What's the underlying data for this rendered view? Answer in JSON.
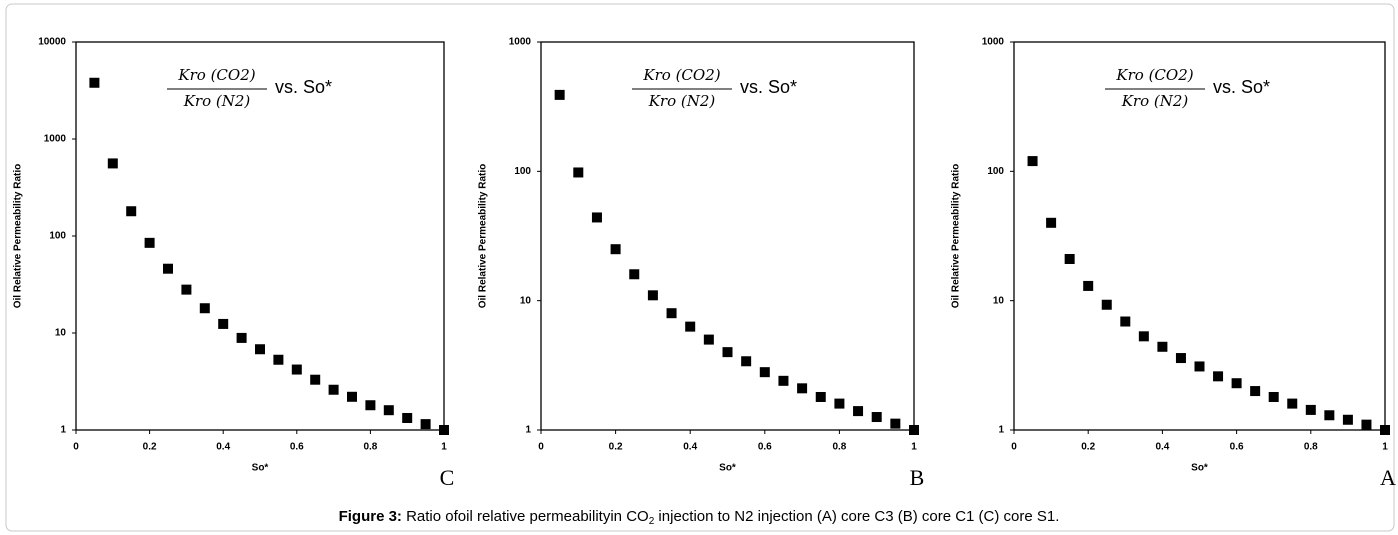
{
  "chart_data": [
    {
      "type": "scatter",
      "panel_label": "C",
      "y_label": "Oil Relative Permeability Ratio",
      "x_label": "So*",
      "annotation": {
        "numerator": "Kro (CO2)",
        "denominator": "Kro (N2)",
        "text": "vs. So*"
      },
      "log_y": true,
      "marker": "square",
      "color": "#000000",
      "xlim": [
        0,
        1
      ],
      "xticks": [
        0,
        0.2,
        0.4,
        0.6,
        0.8,
        1
      ],
      "ylim": [
        1,
        10000
      ],
      "yticks": [
        1,
        10,
        100,
        1000,
        10000
      ],
      "x": [
        0.05,
        0.1,
        0.15,
        0.2,
        0.25,
        0.3,
        0.35,
        0.4,
        0.45,
        0.5,
        0.55,
        0.6,
        0.65,
        0.7,
        0.75,
        0.8,
        0.85,
        0.9,
        0.95,
        1.0
      ],
      "values": [
        3800,
        560,
        180,
        85,
        46,
        28,
        18,
        12.4,
        8.9,
        6.8,
        5.3,
        4.2,
        3.3,
        2.6,
        2.2,
        1.8,
        1.6,
        1.33,
        1.15,
        1
      ]
    },
    {
      "type": "scatter",
      "panel_label": "B",
      "y_label": "Oil Relative Permeability Ratio",
      "x_label": "So*",
      "annotation": {
        "numerator": "Kro (CO2)",
        "denominator": "Kro (N2)",
        "text": "vs. So*"
      },
      "log_y": true,
      "marker": "square",
      "color": "#000000",
      "xlim": [
        0,
        1
      ],
      "xticks": [
        0,
        0.2,
        0.4,
        0.6,
        0.8,
        1
      ],
      "ylim": [
        1,
        1000
      ],
      "yticks": [
        1,
        10,
        100,
        1000
      ],
      "x": [
        0.05,
        0.1,
        0.15,
        0.2,
        0.25,
        0.3,
        0.35,
        0.4,
        0.45,
        0.5,
        0.55,
        0.6,
        0.65,
        0.7,
        0.75,
        0.8,
        0.85,
        0.9,
        0.95,
        1.0
      ],
      "values": [
        390,
        98,
        44,
        25,
        16,
        11,
        8,
        6.3,
        5,
        4,
        3.4,
        2.8,
        2.4,
        2.1,
        1.8,
        1.6,
        1.4,
        1.26,
        1.12,
        1
      ]
    },
    {
      "type": "scatter",
      "panel_label": "A",
      "y_label": "Oil Relative Permeability Ratio",
      "x_label": "So*",
      "annotation": {
        "numerator": "Kro (CO2)",
        "denominator": "Kro (N2)",
        "text": "vs. So*"
      },
      "log_y": true,
      "marker": "square",
      "color": "#000000",
      "xlim": [
        0,
        1
      ],
      "xticks": [
        0,
        0.2,
        0.4,
        0.6,
        0.8,
        1
      ],
      "ylim": [
        1,
        1000
      ],
      "yticks": [
        1,
        10,
        100,
        1000
      ],
      "x": [
        0.05,
        0.1,
        0.15,
        0.2,
        0.25,
        0.3,
        0.35,
        0.4,
        0.45,
        0.5,
        0.55,
        0.6,
        0.65,
        0.7,
        0.75,
        0.8,
        0.85,
        0.9,
        0.95,
        1.0
      ],
      "values": [
        120,
        40,
        21,
        13,
        9.3,
        6.9,
        5.3,
        4.4,
        3.6,
        3.1,
        2.6,
        2.3,
        2.0,
        1.8,
        1.6,
        1.43,
        1.3,
        1.2,
        1.1,
        1
      ]
    }
  ],
  "caption": {
    "label": "Figure 3:",
    "text_before": " Ratio ofoil relative permeabilityin CO",
    "subscript": "2",
    "text_after": " injection to N2 injection (A) core C3 (B) core C1 (C) core S1."
  }
}
